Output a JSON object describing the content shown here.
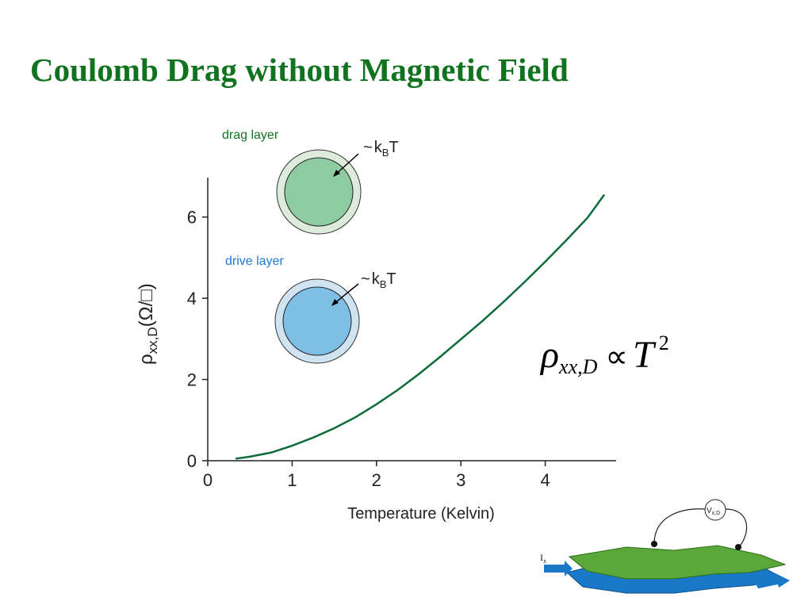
{
  "chart_data": {
    "type": "line",
    "title": "Coulomb Drag without Magnetic Field",
    "xlabel": "Temperature (Kelvin)",
    "ylabel": {
      "main": "ρ",
      "sub": "xx,D",
      "unit": "(Ω/□)"
    },
    "xlim": [
      0,
      4.84
    ],
    "ylim": [
      0,
      6.97
    ],
    "xticks": [
      0,
      1,
      2,
      3,
      4
    ],
    "yticks": [
      0,
      2,
      4,
      6
    ],
    "grid": false,
    "series": [
      {
        "color": "#0d6b3a",
        "x": [
          0.33,
          0.5,
          0.75,
          1.0,
          1.25,
          1.5,
          1.75,
          2.0,
          2.25,
          2.5,
          2.75,
          3.0,
          3.25,
          3.5,
          3.75,
          4.0,
          4.25,
          4.5,
          4.7
        ],
        "values": [
          0.05,
          0.1,
          0.2,
          0.37,
          0.57,
          0.8,
          1.07,
          1.39,
          1.74,
          2.13,
          2.55,
          2.99,
          3.43,
          3.9,
          4.39,
          4.9,
          5.43,
          5.98,
          6.55
        ]
      }
    ],
    "annotations": {
      "drag_label": "drag layer",
      "drag_kbt": {
        "tilde": "~",
        "k": "k",
        "sub": "B",
        "T": "T"
      },
      "drive_label": "drive layer",
      "drive_kbt": {
        "tilde": "~",
        "k": "k",
        "sub": "B",
        "T": "T"
      },
      "formula": {
        "rho": "ρ",
        "sub": "xx,D",
        "op": "∝",
        "T": "T",
        "exp": "2"
      },
      "volt": {
        "main": "V",
        "sub": "x,D"
      },
      "current": {
        "main": "I",
        "sub": "x"
      }
    }
  }
}
